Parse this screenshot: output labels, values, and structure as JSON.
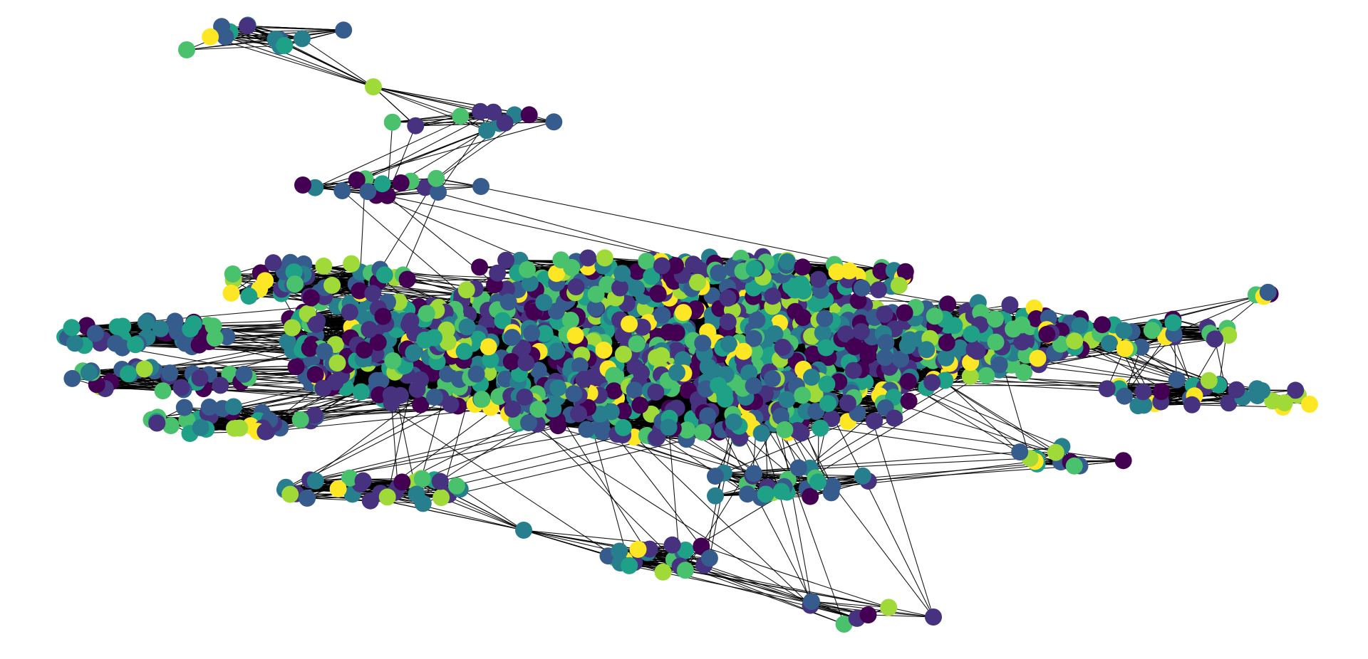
{
  "graph": {
    "type": "network",
    "node_color_map": "viridis",
    "edge_color": "#000000",
    "background": "#ffffff",
    "palette": [
      "#440154",
      "#46327e",
      "#365c8d",
      "#277f8e",
      "#1fa187",
      "#4ac16d",
      "#a0da39",
      "#fde725"
    ]
  }
}
